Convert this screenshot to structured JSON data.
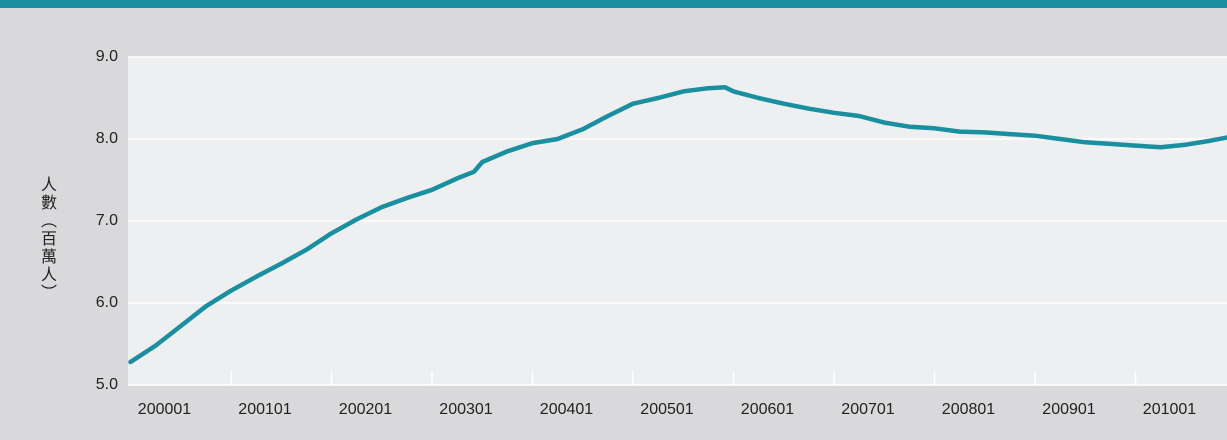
{
  "chart_data": {
    "type": "line",
    "y_label": "人數（百萬人）",
    "x": [
      "200001",
      "200004",
      "200007",
      "200010",
      "200101",
      "200104",
      "200107",
      "200110",
      "200201",
      "200204",
      "200207",
      "200210",
      "200301",
      "200304",
      "200306",
      "200307",
      "200310",
      "200401",
      "200404",
      "200407",
      "200410",
      "200501",
      "200504",
      "200507",
      "200510",
      "200512",
      "200601",
      "200604",
      "200607",
      "200610",
      "200701",
      "200704",
      "200707",
      "200710",
      "200801",
      "200804",
      "200807",
      "200810",
      "200901",
      "200904",
      "200907",
      "200910",
      "201001",
      "201004",
      "201007",
      "201010",
      "201012"
    ],
    "series": [
      {
        "name": "人數",
        "color": "#1a8fa0",
        "values": [
          5.28,
          5.48,
          5.72,
          5.96,
          6.15,
          6.32,
          6.48,
          6.65,
          6.85,
          7.02,
          7.17,
          7.28,
          7.38,
          7.52,
          7.6,
          7.72,
          7.85,
          7.95,
          8.0,
          8.12,
          8.28,
          8.43,
          8.5,
          8.58,
          8.62,
          8.63,
          8.58,
          8.5,
          8.43,
          8.37,
          8.32,
          8.28,
          8.2,
          8.15,
          8.13,
          8.09,
          8.08,
          8.06,
          8.04,
          8.0,
          7.96,
          7.94,
          7.92,
          7.9,
          7.93,
          7.98,
          8.02
        ]
      }
    ],
    "ylim": [
      5,
      9
    ],
    "yticks": [
      {
        "value": 5,
        "label": "5.0"
      },
      {
        "value": 6,
        "label": "6.0"
      },
      {
        "value": 7,
        "label": "7.0"
      },
      {
        "value": 8,
        "label": "8.0"
      },
      {
        "value": 9,
        "label": "9.0"
      }
    ],
    "xticks": [
      "200001",
      "200101",
      "200201",
      "200301",
      "200401",
      "200501",
      "200601",
      "200701",
      "200801",
      "200901",
      "201001"
    ],
    "grid": true
  }
}
